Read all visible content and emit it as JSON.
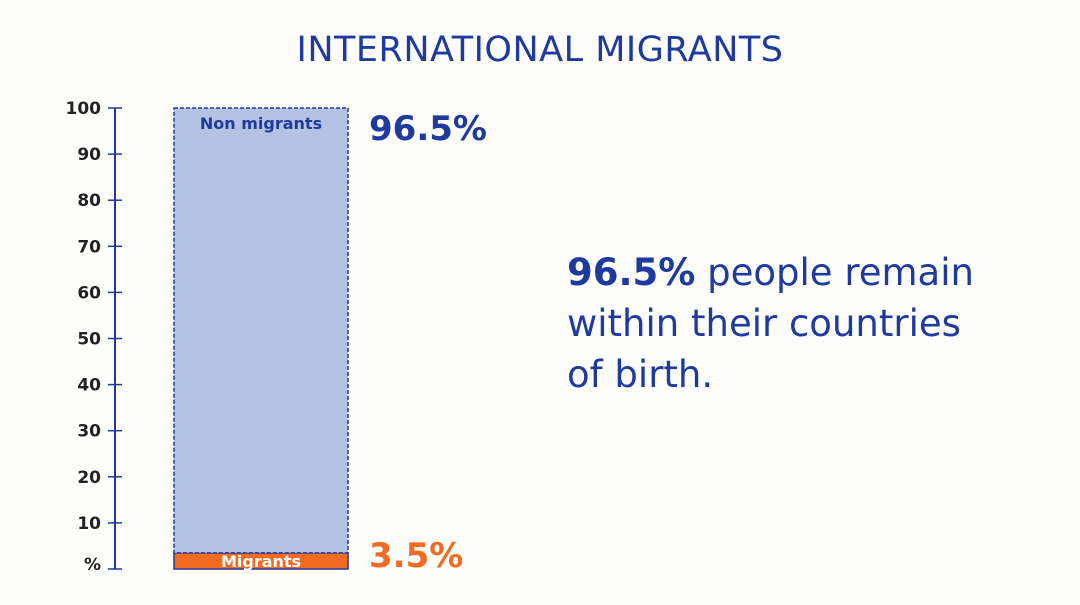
{
  "title": "INTERNATIONAL MIGRANTS",
  "annotation": {
    "highlight": "96.5%",
    "text": " people remain within their countries of birth."
  },
  "colors": {
    "title": "#1f3a9e",
    "axis": "#1f3a9e",
    "non_migrants_fill": "#b4c2e4",
    "non_migrants_stroke": "#1f3a9e",
    "migrants_fill": "#f26b21",
    "migrants_stroke": "#1f3a9e",
    "non_migrants_value": "#1f3a9e",
    "migrants_value": "#f26b21"
  },
  "chart_data": {
    "type": "bar",
    "stacked": true,
    "ylabel": "%",
    "ylim": [
      0,
      100
    ],
    "yticks": [
      100,
      90,
      80,
      70,
      60,
      50,
      40,
      30,
      20,
      10
    ],
    "series": [
      {
        "name": "Migrants",
        "value": 3.5,
        "value_label": "3.5%"
      },
      {
        "name": "Non migrants",
        "value": 96.5,
        "value_label": "96.5%"
      }
    ]
  }
}
